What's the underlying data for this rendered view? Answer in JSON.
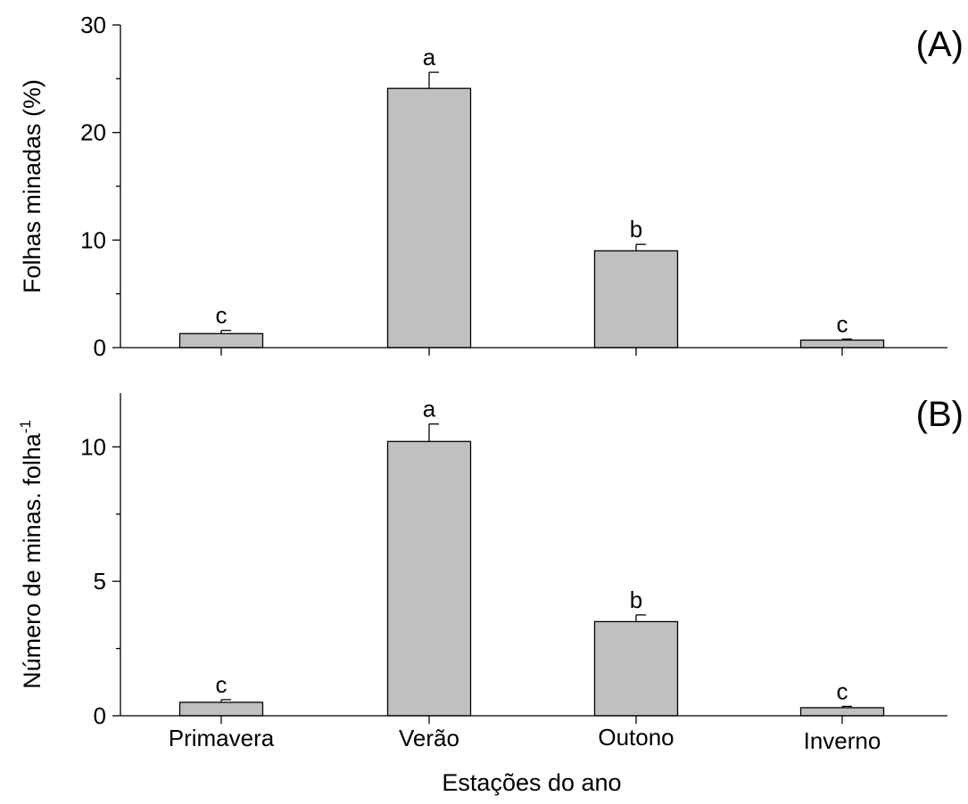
{
  "chart_data": [
    {
      "type": "bar",
      "panel_label": "(A)",
      "categories": [
        "Primavera",
        "Verão",
        "Outono",
        "Inverno"
      ],
      "values": [
        1.3,
        24.1,
        9.0,
        0.7
      ],
      "errors": [
        0.3,
        1.5,
        0.6,
        0.1
      ],
      "letters": [
        "c",
        "a",
        "b",
        "c"
      ],
      "ylabel": "Folhas minadas (%)",
      "ylim": [
        0,
        30
      ],
      "yticks": [
        0,
        10,
        20,
        30
      ],
      "yminor": [
        5,
        15,
        25
      ],
      "bar_color": "#c0c0c0"
    },
    {
      "type": "bar",
      "panel_label": "(B)",
      "categories": [
        "Primavera",
        "Verão",
        "Outono",
        "Inverno"
      ],
      "values": [
        0.5,
        10.2,
        3.5,
        0.3
      ],
      "errors": [
        0.1,
        0.65,
        0.25,
        0.05
      ],
      "letters": [
        "c",
        "a",
        "b",
        "c"
      ],
      "ylabel": "Número de minas. folha",
      "ylabel_superscript": "-1",
      "ylim": [
        0,
        12
      ],
      "yticks": [
        0,
        5,
        10
      ],
      "yminor": [
        2.5,
        7.5
      ],
      "bar_color": "#c0c0c0"
    }
  ],
  "xlabel": "Estações do ano"
}
